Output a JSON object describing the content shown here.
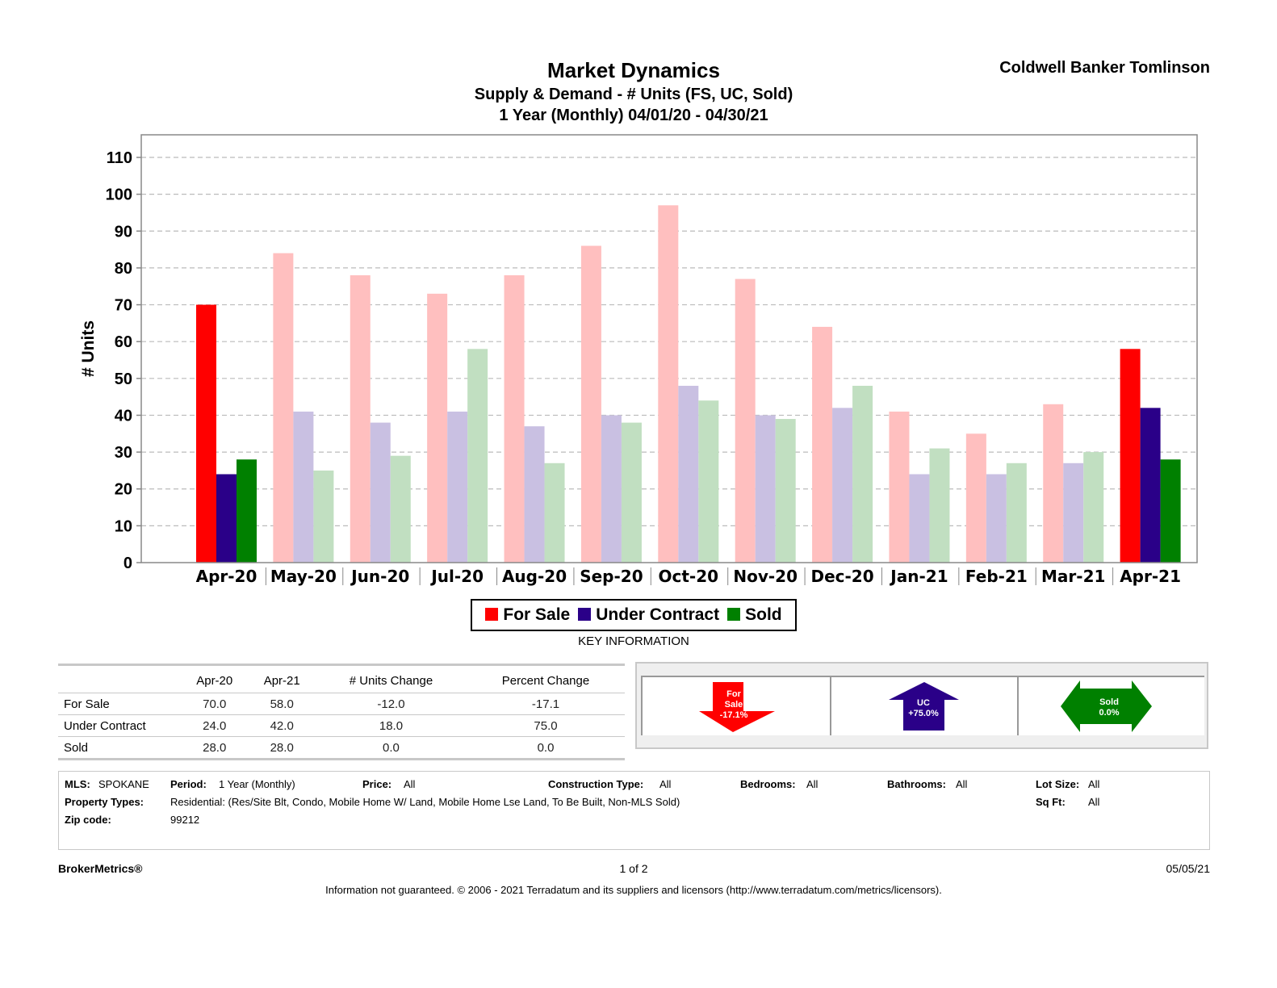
{
  "header": {
    "title": "Market Dynamics",
    "subtitle": "Supply & Demand - # Units (FS, UC, Sold)",
    "period": "1 Year (Monthly) 04/01/20 - 04/30/21",
    "brand": "Coldwell Banker Tomlinson"
  },
  "chart_data": {
    "type": "bar",
    "title": "Market Dynamics",
    "xlabel": "",
    "ylabel": "# Units",
    "ylim": [
      0,
      110
    ],
    "yticks": [
      0,
      10,
      20,
      30,
      40,
      50,
      60,
      70,
      80,
      90,
      100,
      110
    ],
    "grid": true,
    "legend": "bottom",
    "highlighted_categories": [
      "Apr-20",
      "Apr-21"
    ],
    "categories": [
      "Apr-20",
      "May-20",
      "Jun-20",
      "Jul-20",
      "Aug-20",
      "Sep-20",
      "Oct-20",
      "Nov-20",
      "Dec-20",
      "Jan-21",
      "Feb-21",
      "Mar-21",
      "Apr-21"
    ],
    "series": [
      {
        "name": "For Sale",
        "color": "#ff0000",
        "light_color": "#ffbfbf",
        "values": [
          70,
          84,
          78,
          73,
          78,
          86,
          97,
          77,
          64,
          41,
          35,
          43,
          58
        ]
      },
      {
        "name": "Under Contract",
        "color": "#2a0088",
        "light_color": "#c9c0e2",
        "values": [
          24,
          41,
          38,
          41,
          37,
          40,
          48,
          40,
          42,
          24,
          24,
          27,
          42
        ]
      },
      {
        "name": "Sold",
        "color": "#008000",
        "light_color": "#c1dfc1",
        "values": [
          28,
          25,
          29,
          58,
          27,
          38,
          44,
          39,
          48,
          31,
          27,
          30,
          28
        ]
      }
    ]
  },
  "legend": {
    "items": [
      {
        "label": "For Sale",
        "color": "#ff0000"
      },
      {
        "label": "Under Contract",
        "color": "#2a0088"
      },
      {
        "label": "Sold",
        "color": "#008000"
      }
    ]
  },
  "key_info": {
    "title": "KEY INFORMATION",
    "columns": [
      "",
      "Apr-20",
      "Apr-21",
      "# Units Change",
      "Percent Change"
    ],
    "rows": [
      {
        "label": "For Sale",
        "apr20": "70.0",
        "apr21": "58.0",
        "units_change": "-12.0",
        "pct_change": "-17.1"
      },
      {
        "label": "Under Contract",
        "apr20": "24.0",
        "apr21": "42.0",
        "units_change": "18.0",
        "pct_change": "75.0"
      },
      {
        "label": "Sold",
        "apr20": "28.0",
        "apr21": "28.0",
        "units_change": "0.0",
        "pct_change": "0.0"
      }
    ]
  },
  "indicators": [
    {
      "name": "for-sale-down-arrow-icon",
      "line1": "For",
      "line2": "Sale",
      "line3": "-17.1%",
      "color": "#ff0000",
      "direction": "down"
    },
    {
      "name": "uc-up-arrow-icon",
      "line1": "UC",
      "line2": "+75.0%",
      "color": "#2a0088",
      "direction": "up"
    },
    {
      "name": "sold-flat-arrow-icon",
      "line1": "Sold",
      "line2": "0.0%",
      "color": "#008000",
      "direction": "flat"
    }
  ],
  "criteria": {
    "mls_label": "MLS:",
    "mls": "SPOKANE",
    "period_label": "Period:",
    "period": "1 Year (Monthly)",
    "price_label": "Price:",
    "price": "All",
    "construction_label": "Construction Type:",
    "construction": "All",
    "bedrooms_label": "Bedrooms:",
    "bedrooms": "All",
    "bathrooms_label": "Bathrooms:",
    "bathrooms": "All",
    "lot_label": "Lot Size:",
    "lot": "All",
    "ptype_label": "Property Types:",
    "ptype": "Residential: (Res/Site Blt, Condo, Mobile Home W/ Land, Mobile Home Lse Land, To Be Built, Non-MLS Sold)",
    "sqft_label": "Sq Ft:",
    "sqft": "All",
    "zip_label": "Zip code:",
    "zip": "99212"
  },
  "footer": {
    "brand": "BrokerMetrics®",
    "page": "1 of 2",
    "date": "05/05/21",
    "disclaimer": "Information not guaranteed.  © 2006 - 2021 Terradatum and its suppliers and licensors (http://www.terradatum.com/metrics/licensors)."
  }
}
